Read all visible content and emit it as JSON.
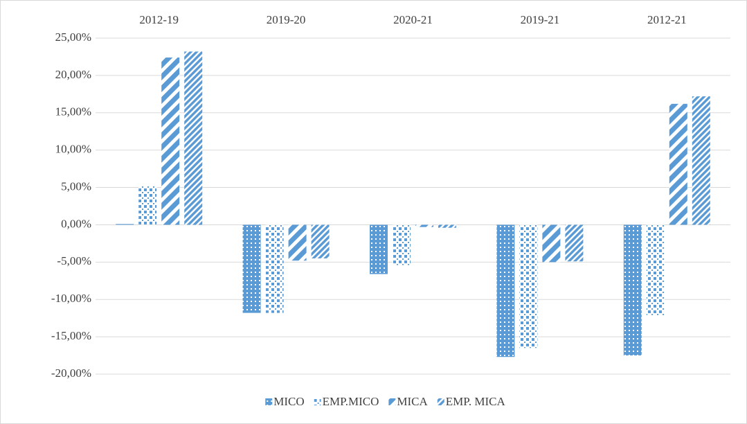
{
  "chart_data": {
    "type": "bar",
    "categories": [
      "2012-19",
      "2019-20",
      "2020-21",
      "2019-21",
      "2012-21"
    ],
    "series": [
      {
        "name": "MICO",
        "color": "#5b9bd5",
        "pattern": "dots",
        "values": [
          0.1,
          -11.8,
          -6.6,
          -17.7,
          -17.5
        ]
      },
      {
        "name": "EMP.MICO",
        "color": "#5b9bd5",
        "pattern": "checker",
        "values": [
          5.2,
          -11.8,
          -5.4,
          -16.5,
          -12.1
        ]
      },
      {
        "name": "MICA",
        "color": "#5b9bd5",
        "pattern": "wide-diagonal",
        "values": [
          22.4,
          -4.8,
          -0.3,
          -5.0,
          16.2
        ]
      },
      {
        "name": "EMP. MICA",
        "color": "#5b9bd5",
        "pattern": "narrow-diagonal",
        "values": [
          23.2,
          -4.5,
          -0.4,
          -4.9,
          17.2
        ]
      }
    ],
    "ylim": [
      -20,
      25
    ],
    "yticks": [
      {
        "value": -20,
        "label": "-20,00%"
      },
      {
        "value": -15,
        "label": "-15,00%"
      },
      {
        "value": -10,
        "label": "-10,00%"
      },
      {
        "value": -5,
        "label": "-5,00%"
      },
      {
        "value": 0,
        "label": "0,00%"
      },
      {
        "value": 5,
        "label": "5,00%"
      },
      {
        "value": 10,
        "label": "10,00%"
      },
      {
        "value": 15,
        "label": "15,00%"
      },
      {
        "value": 20,
        "label": "20,00%"
      },
      {
        "value": 25,
        "label": "25,00%"
      }
    ],
    "grid": true,
    "legend": "bottom"
  }
}
